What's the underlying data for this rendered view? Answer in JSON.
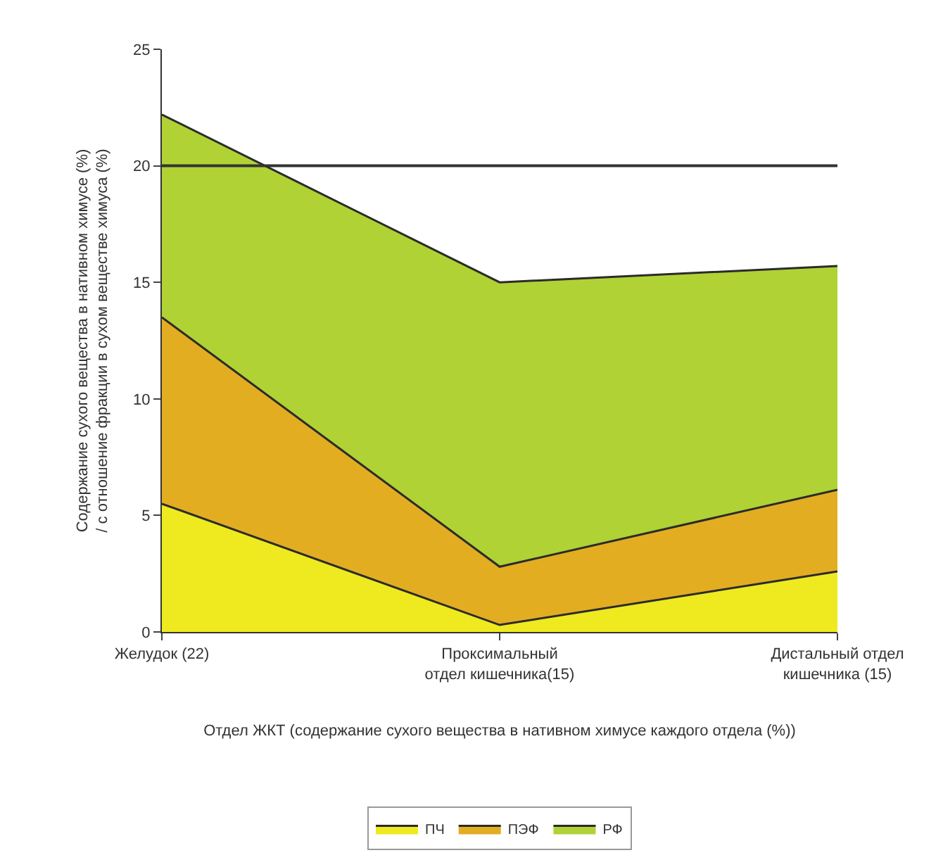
{
  "chart_data": {
    "type": "area",
    "stacked": true,
    "xlabel": "Отдел ЖКТ (содержание сухого вещества в нативном химусе каждого отдела (%))",
    "ylabel": "Содержание сухого вещества в нативном химусе (%) / с отношение фракции в сухом веществе химуса (%)",
    "categories": [
      "Желудок (22)",
      "Проксимальный отдел кишечника(15)",
      "Дистальный отдел кишечника (15)"
    ],
    "series": [
      {
        "name": "ПЧ",
        "color": "#eeea1f",
        "values": [
          5.5,
          0.3,
          2.6
        ]
      },
      {
        "name": "ПЭФ",
        "color": "#e3ad22",
        "values": [
          8.0,
          2.5,
          3.5
        ]
      },
      {
        "name": "РФ",
        "color": "#b0d234",
        "values": [
          8.7,
          12.2,
          9.6
        ]
      }
    ],
    "ylim": [
      0,
      25
    ],
    "yticks": [
      0,
      5,
      10,
      15,
      20,
      25
    ],
    "ref_lines": [
      {
        "axis": "y",
        "value": 20,
        "color": "#333333"
      }
    ],
    "legend": "bottom"
  }
}
